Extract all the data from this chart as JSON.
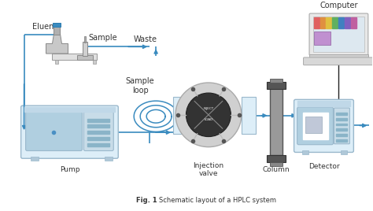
{
  "title": "Schematic layout of a HPLC system",
  "fig_label": "Fig. 1",
  "background_color": "#ffffff",
  "arrow_color": "#3a8bbf",
  "line_color": "#3a8bbf",
  "component_labels": {
    "eluent": "Eluent",
    "sample": "Sample",
    "waste": "Waste",
    "sample_loop": "Sample\nloop",
    "injection_valve": "Injection\nvalve",
    "column": "Column",
    "pump": "Pump",
    "detector": "Detector",
    "computer": "Computer"
  },
  "label_color": "#333333",
  "pump_face": "#ddeef8",
  "pump_edge": "#9ab8cc",
  "pump_win": "#b0cfe0",
  "detector_face": "#ddeef8",
  "detector_edge": "#9ab8cc",
  "detector_win": "#b0cfe0",
  "valve_outer": "#cccccc",
  "valve_inner": "#444444",
  "column_body": "#999999",
  "column_cap": "#555555",
  "computer_screen": "#dde8f0",
  "computer_base": "#cccccc",
  "eluent_bottle": "#cccccc",
  "sample_injector": "#aaaaaa",
  "black_line": "#222222"
}
